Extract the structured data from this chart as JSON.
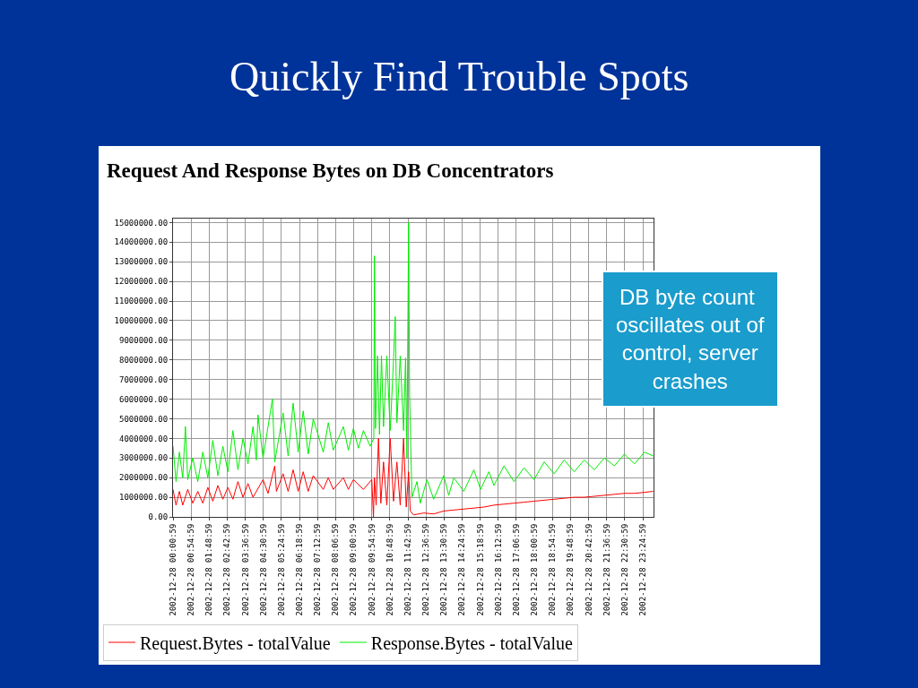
{
  "chart_data": {
    "type": "line",
    "title": "Quickly Find Trouble Spots",
    "subtitle": "Request And Response Bytes on DB Concentrators",
    "annotations": [
      "DB byte count oscillates out of control, server crashes"
    ],
    "xlim": [
      "2002-12-28T00:00:59",
      "2002-12-28T23:56:59"
    ],
    "xticks": [
      {
        "value": "2002-12-28T00:00:59",
        "label": "2002-12-28 00:00:59"
      },
      {
        "value": "2002-12-28T00:54:59",
        "label": "2002-12-28 00:54:59"
      },
      {
        "value": "2002-12-28T01:48:59",
        "label": "2002-12-28 01:48:59"
      },
      {
        "value": "2002-12-28T02:42:59",
        "label": "2002-12-28 02:42:59"
      },
      {
        "value": "2002-12-28T03:36:59",
        "label": "2002-12-28 03:36:59"
      },
      {
        "value": "2002-12-28T04:30:59",
        "label": "2002-12-28 04:30:59"
      },
      {
        "value": "2002-12-28T05:24:59",
        "label": "2002-12-28 05:24:59"
      },
      {
        "value": "2002-12-28T06:18:59",
        "label": "2002-12-28 06:18:59"
      },
      {
        "value": "2002-12-28T07:12:59",
        "label": "2002-12-28 07:12:59"
      },
      {
        "value": "2002-12-28T08:06:59",
        "label": "2002-12-28 08:06:59"
      },
      {
        "value": "2002-12-28T09:00:59",
        "label": "2002-12-28 09:00:59"
      },
      {
        "value": "2002-12-28T09:54:59",
        "label": "2002-12-28 09:54:59"
      },
      {
        "value": "2002-12-28T10:48:59",
        "label": "2002-12-28 10:48:59"
      },
      {
        "value": "2002-12-28T11:42:59",
        "label": "2002-12-28 11:42:59"
      },
      {
        "value": "2002-12-28T12:36:59",
        "label": "2002-12-28 12:36:59"
      },
      {
        "value": "2002-12-28T13:30:59",
        "label": "2002-12-28 13:30:59"
      },
      {
        "value": "2002-12-28T14:24:59",
        "label": "2002-12-28 14:24:59"
      },
      {
        "value": "2002-12-28T15:18:59",
        "label": "2002-12-28 15:18:59"
      },
      {
        "value": "2002-12-28T16:12:59",
        "label": "2002-12-28 16:12:59"
      },
      {
        "value": "2002-12-28T17:06:59",
        "label": "2002-12-28 17:06:59"
      },
      {
        "value": "2002-12-28T18:00:59",
        "label": "2002-12-28 18:00:59"
      },
      {
        "value": "2002-12-28T18:54:59",
        "label": "2002-12-28 18:54:59"
      },
      {
        "value": "2002-12-28T19:48:59",
        "label": "2002-12-28 19:48:59"
      },
      {
        "value": "2002-12-28T20:42:59",
        "label": "2002-12-28 20:42:59"
      },
      {
        "value": "2002-12-28T21:36:59",
        "label": "2002-12-28 21:36:59"
      },
      {
        "value": "2002-12-28T22:30:59",
        "label": "2002-12-28 22:30:59"
      },
      {
        "value": "2002-12-28T23:24:59",
        "label": "2002-12-28 23:24:59"
      }
    ],
    "ylim": [
      0,
      15200000
    ],
    "yticks": [
      {
        "value": 0,
        "label": "0.00"
      },
      {
        "value": 1000000,
        "label": "1000000.00"
      },
      {
        "value": 2000000,
        "label": "2000000.00"
      },
      {
        "value": 3000000,
        "label": "3000000.00"
      },
      {
        "value": 4000000,
        "label": "4000000.00"
      },
      {
        "value": 5000000,
        "label": "5000000.00"
      },
      {
        "value": 6000000,
        "label": "6000000.00"
      },
      {
        "value": 7000000,
        "label": "7000000.00"
      },
      {
        "value": 8000000,
        "label": "8000000.00"
      },
      {
        "value": 9000000,
        "label": "9000000.00"
      },
      {
        "value": 10000000,
        "label": "10000000.00"
      },
      {
        "value": 11000000,
        "label": "11000000.00"
      },
      {
        "value": 12000000,
        "label": "12000000.00"
      },
      {
        "value": 13000000,
        "label": "13000000.00"
      },
      {
        "value": 14000000,
        "label": "14000000.00"
      },
      {
        "value": 15000000,
        "label": "15000000.00"
      }
    ],
    "grid": true,
    "legend": "bottom",
    "marker": "none",
    "line_style": "solid",
    "series": [
      {
        "name": "Request.Bytes - totalValue",
        "color": "#ff0000",
        "x": [
          "2002-12-28T00:01",
          "2002-12-28T00:10",
          "2002-12-28T00:20",
          "2002-12-28T00:30",
          "2002-12-28T00:45",
          "2002-12-28T01:00",
          "2002-12-28T01:15",
          "2002-12-28T01:30",
          "2002-12-28T01:45",
          "2002-12-28T02:00",
          "2002-12-28T02:15",
          "2002-12-28T02:30",
          "2002-12-28T02:45",
          "2002-12-28T03:00",
          "2002-12-28T03:15",
          "2002-12-28T03:30",
          "2002-12-28T03:45",
          "2002-12-28T04:00",
          "2002-12-28T04:30",
          "2002-12-28T04:45",
          "2002-12-28T05:05",
          "2002-12-28T05:10",
          "2002-12-28T05:30",
          "2002-12-28T05:45",
          "2002-12-28T06:00",
          "2002-12-28T06:15",
          "2002-12-28T06:30",
          "2002-12-28T06:45",
          "2002-12-28T07:00",
          "2002-12-28T07:30",
          "2002-12-28T07:45",
          "2002-12-28T08:00",
          "2002-12-28T08:30",
          "2002-12-28T08:45",
          "2002-12-28T09:00",
          "2002-12-28T09:30",
          "2002-12-28T09:55",
          "2002-12-28T10:00",
          "2002-12-28T10:03",
          "2002-12-28T10:08",
          "2002-12-28T10:15",
          "2002-12-28T10:22",
          "2002-12-28T10:30",
          "2002-12-28T10:40",
          "2002-12-28T10:50",
          "2002-12-28T11:00",
          "2002-12-28T11:10",
          "2002-12-28T11:20",
          "2002-12-28T11:30",
          "2002-12-28T11:38",
          "2002-12-28T11:45",
          "2002-12-28T11:50",
          "2002-12-28T12:00",
          "2002-12-28T12:30",
          "2002-12-28T13:00",
          "2002-12-28T13:30",
          "2002-12-28T14:00",
          "2002-12-28T14:30",
          "2002-12-28T15:00",
          "2002-12-28T15:30",
          "2002-12-28T16:00",
          "2002-12-28T16:30",
          "2002-12-28T17:00",
          "2002-12-28T17:30",
          "2002-12-28T18:00",
          "2002-12-28T18:30",
          "2002-12-28T19:00",
          "2002-12-28T19:30",
          "2002-12-28T20:00",
          "2002-12-28T20:30",
          "2002-12-28T21:00",
          "2002-12-28T21:30",
          "2002-12-28T22:00",
          "2002-12-28T22:30",
          "2002-12-28T23:00",
          "2002-12-28T23:30",
          "2002-12-28T23:56"
        ],
        "values": [
          1400000,
          600000,
          1300000,
          600000,
          1400000,
          700000,
          1300000,
          700000,
          1500000,
          800000,
          1600000,
          900000,
          1500000,
          900000,
          1800000,
          1000000,
          1700000,
          1000000,
          1900000,
          1200000,
          2600000,
          1300000,
          2200000,
          1300000,
          2400000,
          1300000,
          2300000,
          1300000,
          2100000,
          1400000,
          2000000,
          1400000,
          2000000,
          1400000,
          1900000,
          1400000,
          1900000,
          0,
          2000000,
          600000,
          4000000,
          700000,
          2800000,
          600000,
          4000000,
          800000,
          2800000,
          600000,
          4000000,
          500000,
          2300000,
          300000,
          100000,
          200000,
          150000,
          300000,
          350000,
          400000,
          450000,
          500000,
          600000,
          650000,
          700000,
          750000,
          800000,
          850000,
          900000,
          950000,
          1000000,
          1000000,
          1050000,
          1100000,
          1150000,
          1200000,
          1200000,
          1250000,
          1300000
        ]
      },
      {
        "name": "Response.Bytes - totalValue",
        "color": "#00ee00",
        "x": [
          "2002-12-28T00:01",
          "2002-12-28T00:10",
          "2002-12-28T00:20",
          "2002-12-28T00:30",
          "2002-12-28T00:38",
          "2002-12-28T00:45",
          "2002-12-28T01:00",
          "2002-12-28T01:15",
          "2002-12-28T01:30",
          "2002-12-28T01:45",
          "2002-12-28T02:00",
          "2002-12-28T02:15",
          "2002-12-28T02:30",
          "2002-12-28T02:45",
          "2002-12-28T03:00",
          "2002-12-28T03:15",
          "2002-12-28T03:30",
          "2002-12-28T03:45",
          "2002-12-28T04:00",
          "2002-12-28T04:10",
          "2002-12-28T04:15",
          "2002-12-28T04:30",
          "2002-12-28T04:58",
          "2002-12-28T05:05",
          "2002-12-28T05:30",
          "2002-12-28T05:45",
          "2002-12-28T06:00",
          "2002-12-28T06:15",
          "2002-12-28T06:30",
          "2002-12-28T06:45",
          "2002-12-28T07:00",
          "2002-12-28T07:30",
          "2002-12-28T07:45",
          "2002-12-28T08:00",
          "2002-12-28T08:30",
          "2002-12-28T08:45",
          "2002-12-28T09:00",
          "2002-12-28T09:15",
          "2002-12-28T09:30",
          "2002-12-28T09:50",
          "2002-12-28T10:01",
          "2002-12-28T10:03",
          "2002-12-28T10:06",
          "2002-12-28T10:12",
          "2002-12-28T10:18",
          "2002-12-28T10:24",
          "2002-12-28T10:30",
          "2002-12-28T10:40",
          "2002-12-28T10:50",
          "2002-12-28T11:00",
          "2002-12-28T11:05",
          "2002-12-28T11:10",
          "2002-12-28T11:20",
          "2002-12-28T11:30",
          "2002-12-28T11:36",
          "2002-12-28T11:40",
          "2002-12-28T11:45",
          "2002-12-28T11:48",
          "2002-12-28T11:55",
          "2002-12-28T12:10",
          "2002-12-28T12:20",
          "2002-12-28T12:40",
          "2002-12-28T13:00",
          "2002-12-28T13:30",
          "2002-12-28T13:45",
          "2002-12-28T14:00",
          "2002-12-28T14:30",
          "2002-12-28T15:00",
          "2002-12-28T15:20",
          "2002-12-28T15:45",
          "2002-12-28T16:00",
          "2002-12-28T16:30",
          "2002-12-28T17:00",
          "2002-12-28T17:30",
          "2002-12-28T18:00",
          "2002-12-28T18:30",
          "2002-12-28T19:00",
          "2002-12-28T19:30",
          "2002-12-28T20:00",
          "2002-12-28T20:30",
          "2002-12-28T21:00",
          "2002-12-28T21:30",
          "2002-12-28T22:00",
          "2002-12-28T22:30",
          "2002-12-28T23:00",
          "2002-12-28T23:30",
          "2002-12-28T23:56"
        ],
        "values": [
          3600000,
          1800000,
          3300000,
          2000000,
          4600000,
          1900000,
          3000000,
          1800000,
          3300000,
          2000000,
          3900000,
          2100000,
          3600000,
          2300000,
          4400000,
          2400000,
          4000000,
          2700000,
          4600000,
          2900000,
          5200000,
          3000000,
          6000000,
          2800000,
          5300000,
          3100000,
          5800000,
          3300000,
          5400000,
          3200000,
          5000000,
          3300000,
          4800000,
          3400000,
          4600000,
          3400000,
          4500000,
          3500000,
          4400000,
          3600000,
          4000000,
          13300000,
          4500000,
          8200000,
          4200000,
          8200000,
          4600000,
          8200000,
          4400000,
          8000000,
          10200000,
          4800000,
          8200000,
          4400000,
          8100000,
          3000000,
          15000000,
          6200000,
          1000000,
          1800000,
          700000,
          1900000,
          900000,
          2100000,
          1100000,
          2000000,
          1300000,
          2400000,
          1400000,
          2300000,
          1600000,
          2600000,
          1800000,
          2500000,
          1900000,
          2800000,
          2200000,
          2900000,
          2300000,
          2900000,
          2400000,
          3000000,
          2600000,
          3200000,
          2700000,
          3300000,
          3100000
        ]
      }
    ]
  }
}
